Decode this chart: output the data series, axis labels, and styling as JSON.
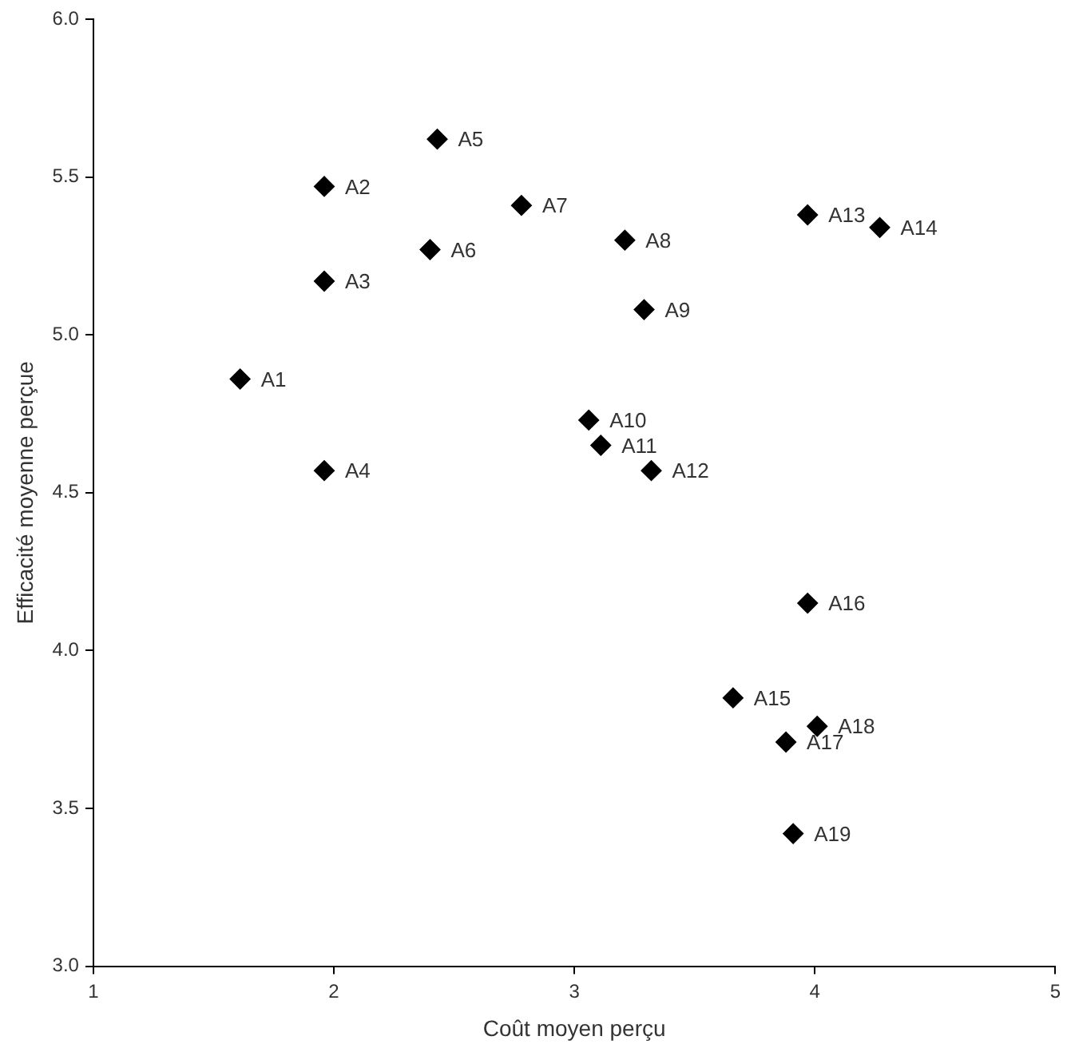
{
  "chart_data": {
    "type": "scatter",
    "xlabel": "Coût moyen perçu",
    "ylabel": "Efficacité moyenne perçue",
    "x": [
      1.61,
      1.96,
      1.96,
      1.96,
      2.43,
      2.4,
      2.78,
      3.21,
      3.29,
      3.06,
      3.11,
      3.32,
      3.97,
      4.27,
      3.66,
      3.97,
      3.88,
      4.01,
      3.91
    ],
    "series": [
      {
        "color": "#000000",
        "values": [
          4.86,
          5.47,
          5.17,
          4.57,
          5.62,
          5.27,
          5.41,
          5.3,
          5.08,
          4.73,
          4.65,
          4.57,
          5.38,
          5.34,
          3.85,
          4.15,
          3.71,
          3.76,
          3.42
        ]
      }
    ],
    "xlim": [
      1,
      5
    ],
    "xticks": [
      1,
      2,
      3,
      4,
      5
    ],
    "ylim": [
      3,
      6
    ],
    "yticks": [
      {
        "value": 3,
        "label": "3.0"
      },
      {
        "value": 3.5,
        "label": "3.5"
      },
      {
        "value": 4,
        "label": "4.0"
      },
      {
        "value": 4.5,
        "label": "4.5"
      },
      {
        "value": 5,
        "label": "5.0"
      },
      {
        "value": 5.5,
        "label": "5.5"
      },
      {
        "value": 6,
        "label": "6.0"
      }
    ],
    "marker": "diamond",
    "grid": false,
    "legend": false,
    "annotations": [
      {
        "text": "A1",
        "x": 1.61,
        "y": 4.86
      },
      {
        "text": "A2",
        "x": 1.96,
        "y": 5.47
      },
      {
        "text": "A3",
        "x": 1.96,
        "y": 5.17
      },
      {
        "text": "A4",
        "x": 1.96,
        "y": 4.57
      },
      {
        "text": "A5",
        "x": 2.43,
        "y": 5.62
      },
      {
        "text": "A6",
        "x": 2.4,
        "y": 5.27
      },
      {
        "text": "A7",
        "x": 2.78,
        "y": 5.41
      },
      {
        "text": "A8",
        "x": 3.21,
        "y": 5.3
      },
      {
        "text": "A9",
        "x": 3.29,
        "y": 5.08
      },
      {
        "text": "A10",
        "x": 3.06,
        "y": 4.73
      },
      {
        "text": "A11",
        "x": 3.11,
        "y": 4.65
      },
      {
        "text": "A12",
        "x": 3.32,
        "y": 4.57
      },
      {
        "text": "A13",
        "x": 3.97,
        "y": 5.38
      },
      {
        "text": "A14",
        "x": 4.27,
        "y": 5.34
      },
      {
        "text": "A15",
        "x": 3.66,
        "y": 3.85
      },
      {
        "text": "A16",
        "x": 3.97,
        "y": 4.15
      },
      {
        "text": "A17",
        "x": 3.88,
        "y": 3.71
      },
      {
        "text": "A18",
        "x": 4.01,
        "y": 3.76
      },
      {
        "text": "A19",
        "x": 3.91,
        "y": 3.42
      }
    ]
  }
}
